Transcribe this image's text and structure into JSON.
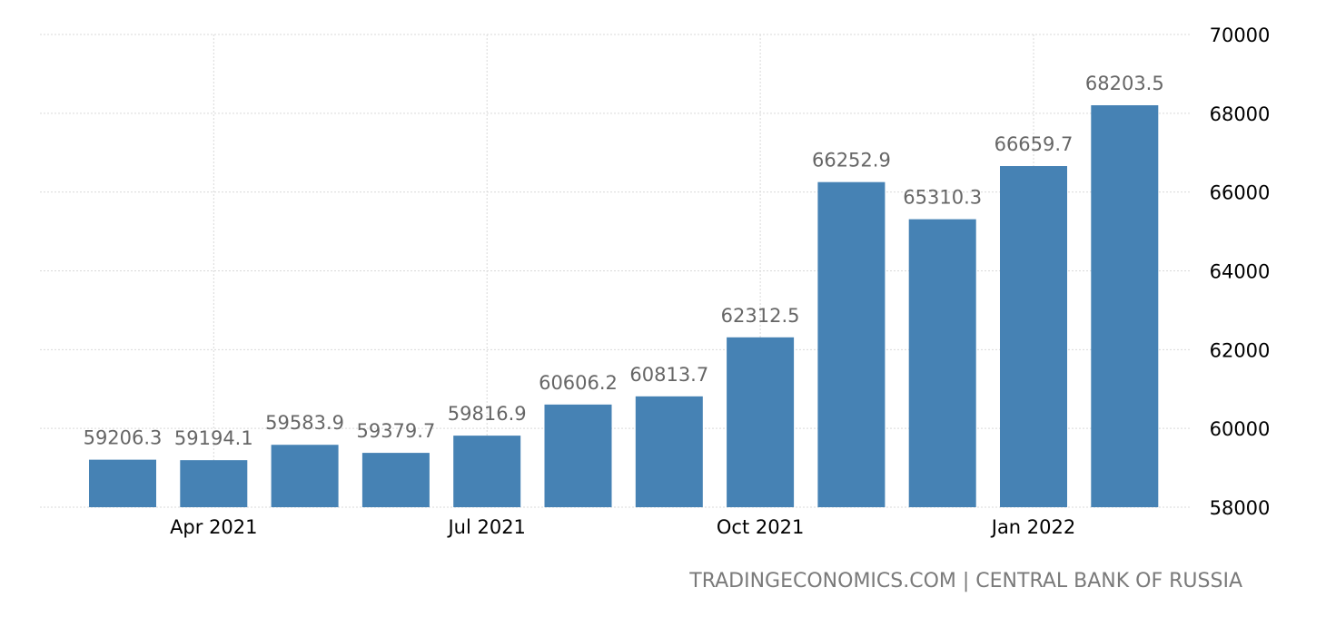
{
  "colors": {
    "bar": "#4682b4",
    "grid": "#d9d9d9",
    "label": "#666666",
    "axis_text": "#000000",
    "source": "#7a7a7a"
  },
  "source_text": "TRADINGECONOMICS.COM | CENTRAL BANK OF RUSSIA",
  "chart_data": {
    "type": "bar",
    "title": "",
    "xlabel": "",
    "ylabel": "",
    "categories": [
      "2021-03",
      "2021-04",
      "2021-05",
      "2021-06",
      "2021-07",
      "2021-08",
      "2021-09",
      "2021-10",
      "2021-11",
      "2021-12",
      "2022-01",
      "2022-02"
    ],
    "values": [
      59206.3,
      59194.1,
      59583.9,
      59379.7,
      59816.9,
      60606.2,
      60813.7,
      62312.5,
      66252.9,
      65310.3,
      66659.7,
      68203.5
    ],
    "value_labels": [
      "59206.3",
      "59194.1",
      "59583.9",
      "59379.7",
      "59816.9",
      "60606.2",
      "60813.7",
      "62312.5",
      "66252.9",
      "65310.3",
      "66659.7",
      "68203.5"
    ],
    "x_tick_labels": [
      {
        "label": "Apr 2021",
        "category": "2021-04"
      },
      {
        "label": "Jul 2021",
        "category": "2021-07"
      },
      {
        "label": "Oct 2021",
        "category": "2021-10"
      },
      {
        "label": "Jan 2022",
        "category": "2022-01"
      }
    ],
    "y_ticks": [
      58000,
      60000,
      62000,
      64000,
      66000,
      68000,
      70000
    ],
    "ylim": [
      58000,
      70000
    ],
    "y_axis_position": "right",
    "grid": true,
    "legend": "none"
  }
}
